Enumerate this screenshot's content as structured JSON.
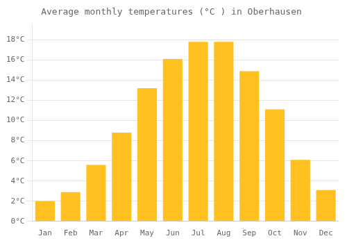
{
  "chart_data": {
    "type": "bar",
    "title": "Average monthly temperatures (°C ) in Oberhausen",
    "categories": [
      "Jan",
      "Feb",
      "Mar",
      "Apr",
      "May",
      "Jun",
      "Jul",
      "Aug",
      "Sep",
      "Oct",
      "Nov",
      "Dec"
    ],
    "values": [
      2.0,
      2.9,
      5.6,
      8.8,
      13.2,
      16.1,
      17.8,
      17.8,
      14.9,
      11.1,
      6.1,
      3.1
    ],
    "color": "#FFC020",
    "ylim": [
      0,
      19.5
    ],
    "yticks": [
      {
        "value": 0,
        "label": "0°C"
      },
      {
        "value": 2,
        "label": "2°C"
      },
      {
        "value": 4,
        "label": "4°C"
      },
      {
        "value": 6,
        "label": "6°C"
      },
      {
        "value": 8,
        "label": "8°C"
      },
      {
        "value": 10,
        "label": "10°C"
      },
      {
        "value": 12,
        "label": "12°C"
      },
      {
        "value": 14,
        "label": "14°C"
      },
      {
        "value": 16,
        "label": "16°C"
      },
      {
        "value": 18,
        "label": "18°C"
      }
    ],
    "grid": true
  }
}
